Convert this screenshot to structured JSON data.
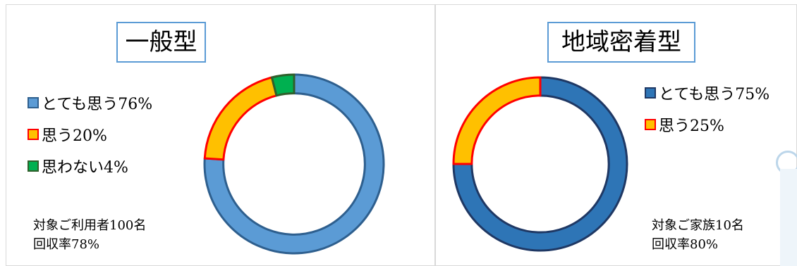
{
  "chart_data": [
    {
      "type": "pie",
      "title": "一般型",
      "categories": [
        "とても思う76%",
        "思う20%",
        "思わない4%"
      ],
      "values": [
        76,
        20,
        4
      ],
      "colors": [
        "#5b9bd5",
        "#ffc000",
        "#00b050"
      ],
      "outlines": [
        "#2e5f8e",
        "#ff0000",
        "#2f5f2b"
      ],
      "legend_position": "left",
      "note": [
        "対象ご利用者100名",
        "回収率78%"
      ]
    },
    {
      "type": "pie",
      "title": "地域密着型",
      "categories": [
        "とても思う75%",
        "思う25%"
      ],
      "values": [
        75,
        25
      ],
      "colors": [
        "#2e75b6",
        "#ffc000"
      ],
      "outlines": [
        "#1f3864",
        "#ff0000"
      ],
      "legend_position": "right",
      "note": [
        "対象ご家族10名",
        "回収率80%"
      ]
    }
  ]
}
